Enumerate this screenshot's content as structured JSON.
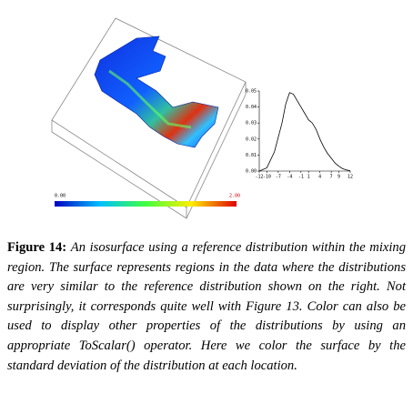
{
  "chart_data": {
    "type": "line",
    "color": "#000000",
    "x": [
      -12,
      -10,
      -8,
      -6,
      -5,
      -4,
      -3,
      -2,
      -1,
      0,
      1,
      2,
      3,
      4,
      5,
      6,
      7,
      8,
      9,
      10,
      11,
      12
    ],
    "values": [
      0,
      0.002,
      0.012,
      0.03,
      0.042,
      0.049,
      0.048,
      0.044,
      0.04,
      0.036,
      0.032,
      0.03,
      0.026,
      0.02,
      0.015,
      0.011,
      0.008,
      0.005,
      0.003,
      0.0015,
      0.0007,
      0.0002
    ],
    "xlim": [
      -12,
      12
    ],
    "xticks": [
      -12,
      -10,
      -7,
      -4,
      -1,
      1,
      4,
      7,
      9,
      12
    ],
    "ylim": [
      0,
      0.05
    ],
    "yticks": [
      {
        "value": 0,
        "label": "0.00"
      },
      {
        "value": 0.01,
        "label": "0.01"
      },
      {
        "value": 0.02,
        "label": "0.02"
      },
      {
        "value": 0.03,
        "label": "0.03"
      },
      {
        "value": 0.04,
        "label": "0.04"
      },
      {
        "value": 0.05,
        "label": "0.05"
      }
    ]
  },
  "colorbar": {
    "min_label": "0.00",
    "max_label": "2.00"
  },
  "caption": {
    "label": "Figure 14:",
    "text": "An isosurface using a reference distribution within the mixing region. The surface represents regions in the data where the distributions are very similar to the reference distribution shown on the right. Not surprisingly, it corresponds quite well with Figure 13. Color can also be used to display other properties of the distributions by using an appropriate ToScalar() operator. Here we color the surface by the standard deviation of the distribution at each location."
  }
}
